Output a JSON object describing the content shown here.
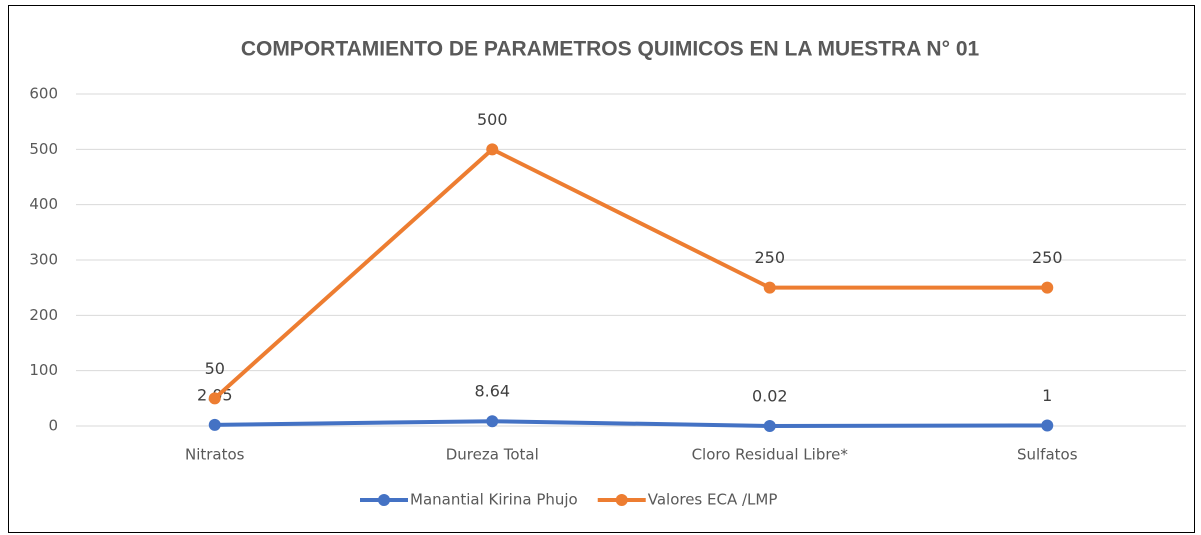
{
  "chart_data": {
    "type": "line",
    "title": "COMPORTAMIENTO DE  PARAMETROS QUIMICOS EN LA MUESTRA N° 01",
    "categories": [
      "Nitratos",
      "Dureza Total",
      "Cloro Residual Libre*",
      "Sulfatos"
    ],
    "series": [
      {
        "name": "Manantial Kirina Phujo",
        "color": "#4472c4",
        "values": [
          2.05,
          8.64,
          0.02,
          1
        ]
      },
      {
        "name": "Valores ECA /LMP",
        "color": "#ed7d31",
        "values": [
          50,
          500,
          250,
          250
        ]
      }
    ],
    "ylim": [
      0,
      600
    ],
    "yticks": [
      0,
      100,
      200,
      300,
      400,
      500,
      600
    ],
    "grid": true,
    "legend": "bottom"
  }
}
